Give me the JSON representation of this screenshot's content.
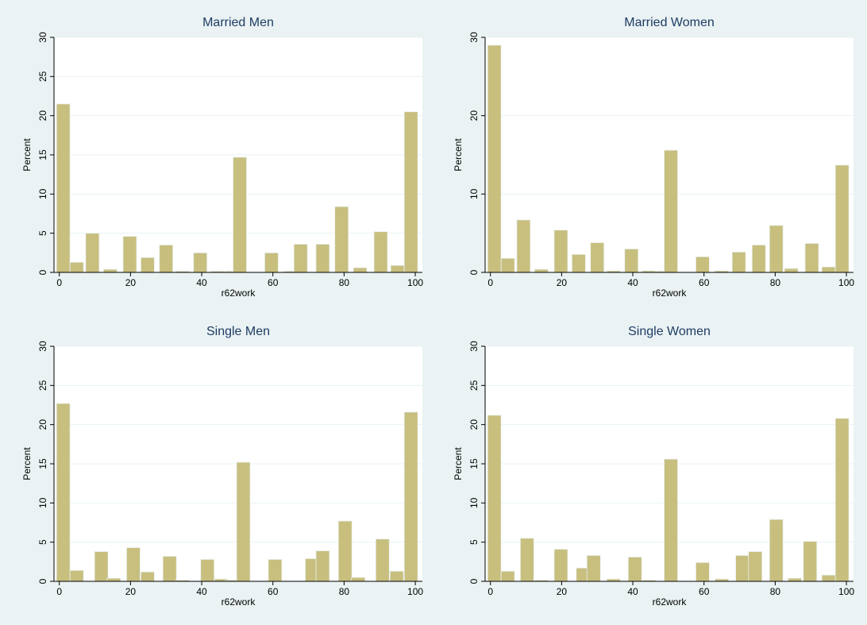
{
  "chart_data": [
    {
      "type": "bar",
      "title": "Married Men",
      "xlabel": "r62work",
      "ylabel": "Percent",
      "xlim": [
        0,
        100
      ],
      "ylim": [
        0,
        30
      ],
      "xticks": [
        0,
        20,
        40,
        60,
        80,
        100
      ],
      "yticks": [
        0,
        5,
        10,
        15,
        20,
        25,
        30
      ],
      "bin_width": 3.8,
      "bins": [
        {
          "x": 1.1,
          "y": 21.5
        },
        {
          "x": 4.9,
          "y": 1.3
        },
        {
          "x": 9.3,
          "y": 5.0
        },
        {
          "x": 14.3,
          "y": 0.4
        },
        {
          "x": 19.8,
          "y": 4.6
        },
        {
          "x": 24.8,
          "y": 1.9
        },
        {
          "x": 30.0,
          "y": 3.5
        },
        {
          "x": 34.6,
          "y": 0.15
        },
        {
          "x": 39.6,
          "y": 2.5
        },
        {
          "x": 44.5,
          "y": 0.15
        },
        {
          "x": 48.5,
          "y": 0.15
        },
        {
          "x": 50.7,
          "y": 14.7
        },
        {
          "x": 59.6,
          "y": 2.5
        },
        {
          "x": 65.0,
          "y": 0.15
        },
        {
          "x": 67.8,
          "y": 3.6
        },
        {
          "x": 74.0,
          "y": 3.6
        },
        {
          "x": 79.3,
          "y": 8.4
        },
        {
          "x": 84.5,
          "y": 0.6
        },
        {
          "x": 90.3,
          "y": 5.2
        },
        {
          "x": 95.0,
          "y": 0.9
        },
        {
          "x": 98.8,
          "y": 20.5
        }
      ]
    },
    {
      "type": "bar",
      "title": "Married Women",
      "xlabel": "r62work",
      "ylabel": "Percent",
      "xlim": [
        0,
        100
      ],
      "ylim": [
        0,
        30
      ],
      "xticks": [
        0,
        20,
        40,
        60,
        80,
        100
      ],
      "yticks": [
        0,
        10,
        20,
        30
      ],
      "bin_width": 3.8,
      "bins": [
        {
          "x": 1.1,
          "y": 29.0
        },
        {
          "x": 4.9,
          "y": 1.8
        },
        {
          "x": 9.3,
          "y": 6.7
        },
        {
          "x": 14.3,
          "y": 0.4
        },
        {
          "x": 19.8,
          "y": 5.4
        },
        {
          "x": 24.8,
          "y": 2.3
        },
        {
          "x": 30.0,
          "y": 3.8
        },
        {
          "x": 34.6,
          "y": 0.2
        },
        {
          "x": 39.6,
          "y": 3.0
        },
        {
          "x": 44.5,
          "y": 0.2
        },
        {
          "x": 48.5,
          "y": 0.15
        },
        {
          "x": 50.7,
          "y": 15.6
        },
        {
          "x": 59.6,
          "y": 2.0
        },
        {
          "x": 65.0,
          "y": 0.2
        },
        {
          "x": 69.8,
          "y": 2.6
        },
        {
          "x": 75.4,
          "y": 3.5
        },
        {
          "x": 80.3,
          "y": 6.0
        },
        {
          "x": 84.5,
          "y": 0.5
        },
        {
          "x": 90.3,
          "y": 3.7
        },
        {
          "x": 95.0,
          "y": 0.7
        },
        {
          "x": 98.8,
          "y": 13.7
        }
      ]
    },
    {
      "type": "bar",
      "title": "Single Men",
      "xlabel": "r62work",
      "ylabel": "Percent",
      "xlim": [
        0,
        100
      ],
      "ylim": [
        0,
        30
      ],
      "xticks": [
        0,
        20,
        40,
        60,
        80,
        100
      ],
      "yticks": [
        0,
        5,
        10,
        15,
        20,
        25,
        30
      ],
      "bin_width": 3.8,
      "bins": [
        {
          "x": 1.1,
          "y": 22.7
        },
        {
          "x": 4.9,
          "y": 1.4
        },
        {
          "x": 11.8,
          "y": 3.8
        },
        {
          "x": 15.3,
          "y": 0.4
        },
        {
          "x": 20.8,
          "y": 4.3
        },
        {
          "x": 24.8,
          "y": 1.2
        },
        {
          "x": 31.0,
          "y": 3.2
        },
        {
          "x": 34.6,
          "y": 0.15
        },
        {
          "x": 41.6,
          "y": 2.8
        },
        {
          "x": 45.5,
          "y": 0.3
        },
        {
          "x": 48.5,
          "y": 0.15
        },
        {
          "x": 51.7,
          "y": 15.2
        },
        {
          "x": 60.6,
          "y": 2.8
        },
        {
          "x": 71.0,
          "y": 2.9
        },
        {
          "x": 74.0,
          "y": 3.9
        },
        {
          "x": 80.3,
          "y": 7.7
        },
        {
          "x": 84.0,
          "y": 0.5
        },
        {
          "x": 90.8,
          "y": 5.4
        },
        {
          "x": 94.8,
          "y": 1.3
        },
        {
          "x": 98.8,
          "y": 21.6
        }
      ]
    },
    {
      "type": "bar",
      "title": "Single Women",
      "xlabel": "r62work",
      "ylabel": "Percent",
      "xlim": [
        0,
        100
      ],
      "ylim": [
        0,
        30
      ],
      "xticks": [
        0,
        20,
        40,
        60,
        80,
        100
      ],
      "yticks": [
        0,
        5,
        10,
        15,
        20,
        25,
        30
      ],
      "bin_width": 3.8,
      "bins": [
        {
          "x": 1.1,
          "y": 21.2
        },
        {
          "x": 4.9,
          "y": 1.3
        },
        {
          "x": 10.3,
          "y": 5.5
        },
        {
          "x": 14.3,
          "y": 0.15
        },
        {
          "x": 19.8,
          "y": 4.1
        },
        {
          "x": 26.0,
          "y": 1.7
        },
        {
          "x": 29.0,
          "y": 3.3
        },
        {
          "x": 34.6,
          "y": 0.3
        },
        {
          "x": 40.6,
          "y": 3.1
        },
        {
          "x": 44.5,
          "y": 0.15
        },
        {
          "x": 50.7,
          "y": 15.6
        },
        {
          "x": 59.6,
          "y": 2.4
        },
        {
          "x": 65.0,
          "y": 0.3
        },
        {
          "x": 70.8,
          "y": 3.3
        },
        {
          "x": 74.4,
          "y": 3.8
        },
        {
          "x": 80.3,
          "y": 7.9
        },
        {
          "x": 85.5,
          "y": 0.4
        },
        {
          "x": 89.8,
          "y": 5.1
        },
        {
          "x": 95.0,
          "y": 0.8
        },
        {
          "x": 98.8,
          "y": 20.8
        }
      ]
    }
  ]
}
